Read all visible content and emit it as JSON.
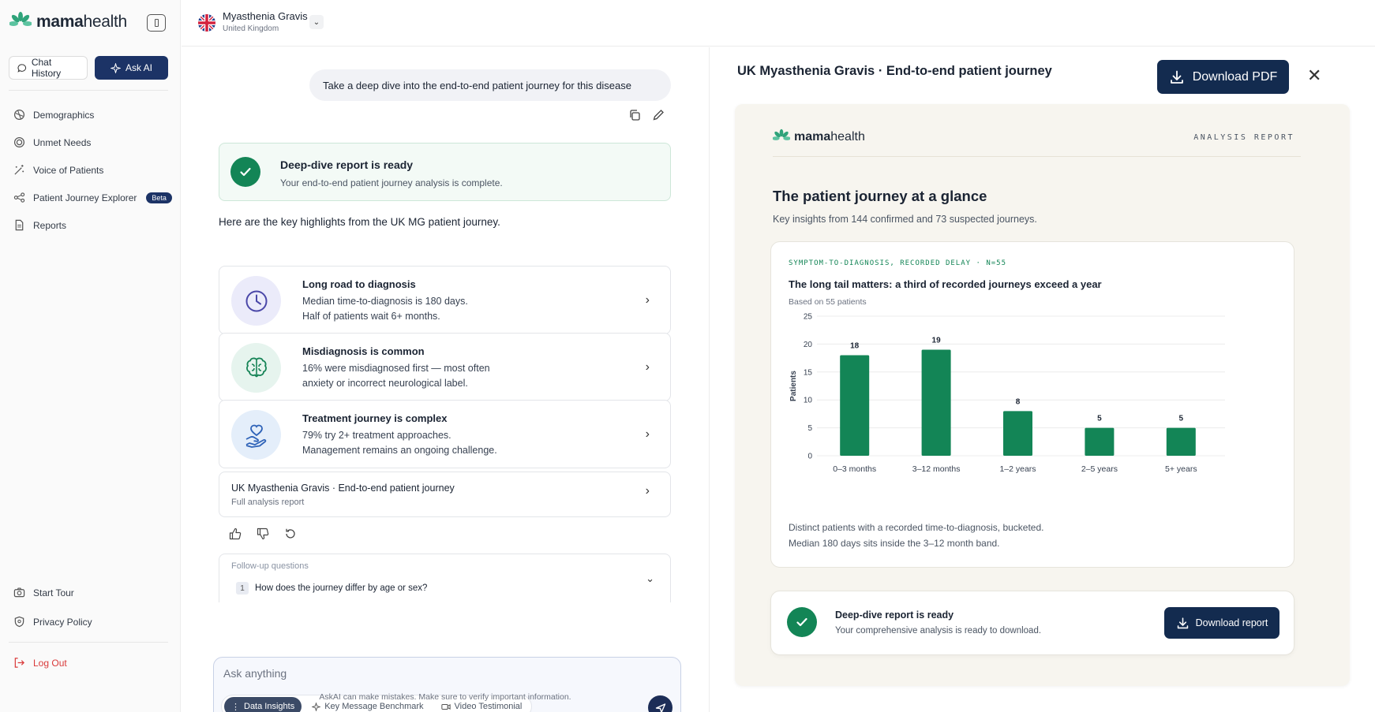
{
  "brand": {
    "name_bold": "mama",
    "name_rest": "health",
    "accent": "#138556",
    "navy": "#1c3366"
  },
  "sidebar": {
    "chat_history": "Chat History",
    "ask_ai": "Ask AI",
    "items": [
      {
        "label": "Demographics",
        "icon": "demographics-icon"
      },
      {
        "label": "Unmet Needs",
        "icon": "target-icon"
      },
      {
        "label": "Voice of Patients",
        "icon": "sparkle-wand-icon"
      },
      {
        "label": "Patient Journey Explorer",
        "icon": "journey-icon",
        "badge": "Beta"
      },
      {
        "label": "Reports",
        "icon": "document-icon"
      }
    ],
    "bottom": {
      "start_tour": "Start Tour",
      "privacy_policy": "Privacy Policy",
      "log_out": "Log Out"
    }
  },
  "header": {
    "disease": "Myasthenia Gravis",
    "country": "United Kingdom"
  },
  "chat": {
    "user_message": "Take a deep dive into the end-to-end patient journey for this disease",
    "ready": {
      "title": "Deep-dive report is ready",
      "subtitle": "Your end-to-end patient journey analysis is complete."
    },
    "intro": "Here are the key highlights from the UK MG patient journey.",
    "highlights": [
      {
        "title": "Long road to diagnosis",
        "line1": "Median time-to-diagnosis is 180 days.",
        "line2": "Half of patients wait 6+ months.",
        "icon": "clock-icon"
      },
      {
        "title": "Misdiagnosis is common",
        "line1": "16% were misdiagnosed first — most often",
        "line2": "anxiety or incorrect neurological label.",
        "icon": "brain-icon"
      },
      {
        "title": "Treatment journey is complex",
        "line1": "79% try 2+ treatment approaches.",
        "line2": "Management remains an ongoing challenge.",
        "icon": "heart-hand-icon"
      }
    ],
    "report_link": {
      "title": "UK Myasthenia Gravis · End-to-end patient journey",
      "subtitle": "Full analysis report"
    },
    "followup": {
      "label": "Follow-up questions",
      "items": [
        {
          "num": "1",
          "text": "How does the journey differ by age or sex?"
        }
      ]
    },
    "composer": {
      "placeholder": "Ask anything",
      "tools": [
        {
          "label": "Data Insights",
          "active": true
        },
        {
          "label": "Key Message Benchmark",
          "active": false
        },
        {
          "label": "Video Testimonial",
          "active": false
        }
      ]
    },
    "disclaimer": "AskAI can make mistakes. Make sure to verify important information."
  },
  "panel": {
    "title": "UK Myasthenia Gravis · End-to-end patient journey",
    "download_pdf": "Download PDF",
    "report": {
      "label": "ANALYSIS REPORT",
      "title": "The patient journey at a glance",
      "subtitle": "Key insights from 144 confirmed and 73 suspected journeys.",
      "chart_kicker": "SYMPTOM-TO-DIAGNOSIS, RECORDED DELAY · N=55",
      "chart_title": "The long tail matters: a third of recorded journeys exceed a year",
      "based_on": "Based on 55 patients",
      "note1": "Distinct patients with a recorded time-to-diagnosis, bucketed.",
      "note2": "Median 180 days sits inside the 3–12 month band.",
      "download": {
        "title": "Deep-dive report is ready",
        "subtitle": "Your comprehensive analysis is ready to download.",
        "button": "Download report"
      }
    }
  },
  "chart_data": {
    "type": "bar",
    "title": "The long tail matters: a third of recorded journeys exceed a year",
    "subtitle": "Based on 55 patients",
    "categories": [
      "0–3 months",
      "3–12 months",
      "1–2 years",
      "2–5 years",
      "5+ years"
    ],
    "values": [
      18,
      19,
      8,
      5,
      5
    ],
    "xlabel": "",
    "ylabel": "Patients",
    "ylim": [
      0,
      25
    ],
    "yticks": [
      0,
      5,
      10,
      15,
      20,
      25
    ],
    "grid": true,
    "bar_color": "#138556",
    "data_labels": true
  }
}
